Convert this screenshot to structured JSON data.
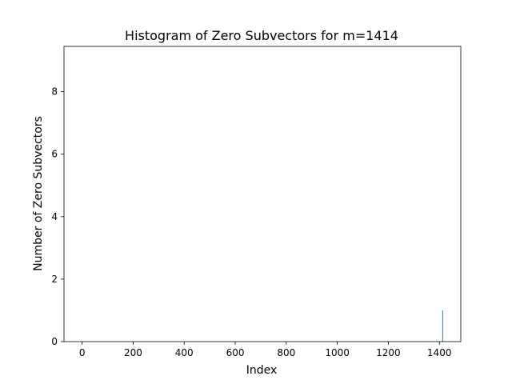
{
  "chart_data": {
    "type": "bar",
    "title": "Histogram of Zero Subvectors for m=1414",
    "xlabel": "Index",
    "ylabel": "Number of Zero Subvectors",
    "xlim": [
      -71,
      1484
    ],
    "ylim": [
      0,
      9.45
    ],
    "xticks": [
      0,
      200,
      400,
      600,
      800,
      1000,
      1200,
      1400
    ],
    "yticks": [
      0,
      2,
      4,
      6,
      8
    ],
    "grid": false,
    "legend": "none",
    "bars": [
      {
        "x": 1413,
        "value": 1
      }
    ],
    "bar_width": 0.8,
    "bar_color": "#1f77b4"
  }
}
